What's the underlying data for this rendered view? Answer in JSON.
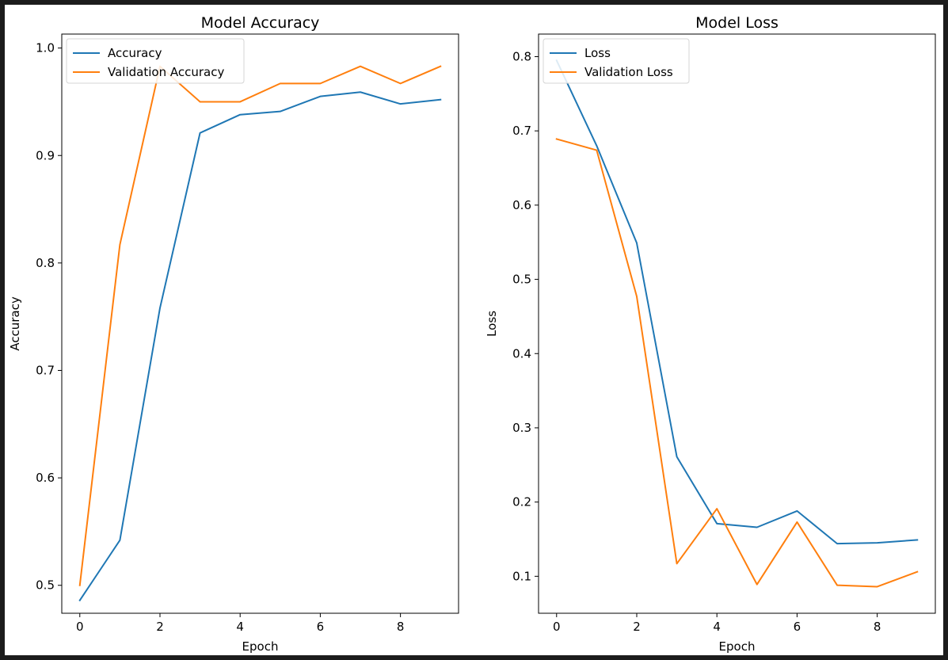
{
  "figure": {
    "colors": {
      "series_blue": "#1f77b4",
      "series_orange": "#ff7f0e",
      "frame": "#1c1c1c"
    }
  },
  "chart_data": [
    {
      "type": "line",
      "title": "Model Accuracy",
      "xlabel": "Epoch",
      "ylabel": "Accuracy",
      "x": [
        0,
        1,
        2,
        3,
        4,
        5,
        6,
        7,
        8,
        9
      ],
      "xlim": [
        -0.45,
        9.45
      ],
      "ylim": [
        0.474,
        1.013
      ],
      "xticks": [
        0,
        2,
        4,
        6,
        8
      ],
      "yticks": [
        0.5,
        0.6,
        0.7,
        0.8,
        0.9,
        1.0
      ],
      "xtick_labels": [
        "0",
        "2",
        "4",
        "6",
        "8"
      ],
      "ytick_labels": [
        "0.5",
        "0.6",
        "0.7",
        "0.8",
        "0.9",
        "1.0"
      ],
      "grid": false,
      "legend_position": "upper left",
      "series": [
        {
          "name": "Accuracy",
          "color": "#1f77b4",
          "values": [
            0.486,
            0.542,
            0.758,
            0.921,
            0.938,
            0.941,
            0.955,
            0.959,
            0.948,
            0.952
          ]
        },
        {
          "name": "Validation Accuracy",
          "color": "#ff7f0e",
          "values": [
            0.5,
            0.817,
            0.983,
            0.95,
            0.95,
            0.967,
            0.967,
            0.983,
            0.967,
            0.983
          ]
        }
      ]
    },
    {
      "type": "line",
      "title": "Model Loss",
      "xlabel": "Epoch",
      "ylabel": "Loss",
      "x": [
        0,
        1,
        2,
        3,
        4,
        5,
        6,
        7,
        8,
        9
      ],
      "xlim": [
        -0.45,
        9.45
      ],
      "ylim": [
        0.0502,
        0.8304
      ],
      "xticks": [
        0,
        2,
        4,
        6,
        8
      ],
      "yticks": [
        0.1,
        0.2,
        0.3,
        0.4,
        0.5,
        0.6,
        0.7,
        0.8
      ],
      "xtick_labels": [
        "0",
        "2",
        "4",
        "6",
        "8"
      ],
      "ytick_labels": [
        "0.1",
        "0.2",
        "0.3",
        "0.4",
        "0.5",
        "0.6",
        "0.7",
        "0.8"
      ],
      "grid": false,
      "legend_position": "upper left",
      "series": [
        {
          "name": "Loss",
          "color": "#1f77b4",
          "values": [
            0.795,
            0.68,
            0.549,
            0.261,
            0.171,
            0.166,
            0.188,
            0.144,
            0.145,
            0.149
          ]
        },
        {
          "name": "Validation Loss",
          "color": "#ff7f0e",
          "values": [
            0.689,
            0.674,
            0.477,
            0.117,
            0.191,
            0.089,
            0.173,
            0.088,
            0.086,
            0.106
          ]
        }
      ]
    }
  ]
}
